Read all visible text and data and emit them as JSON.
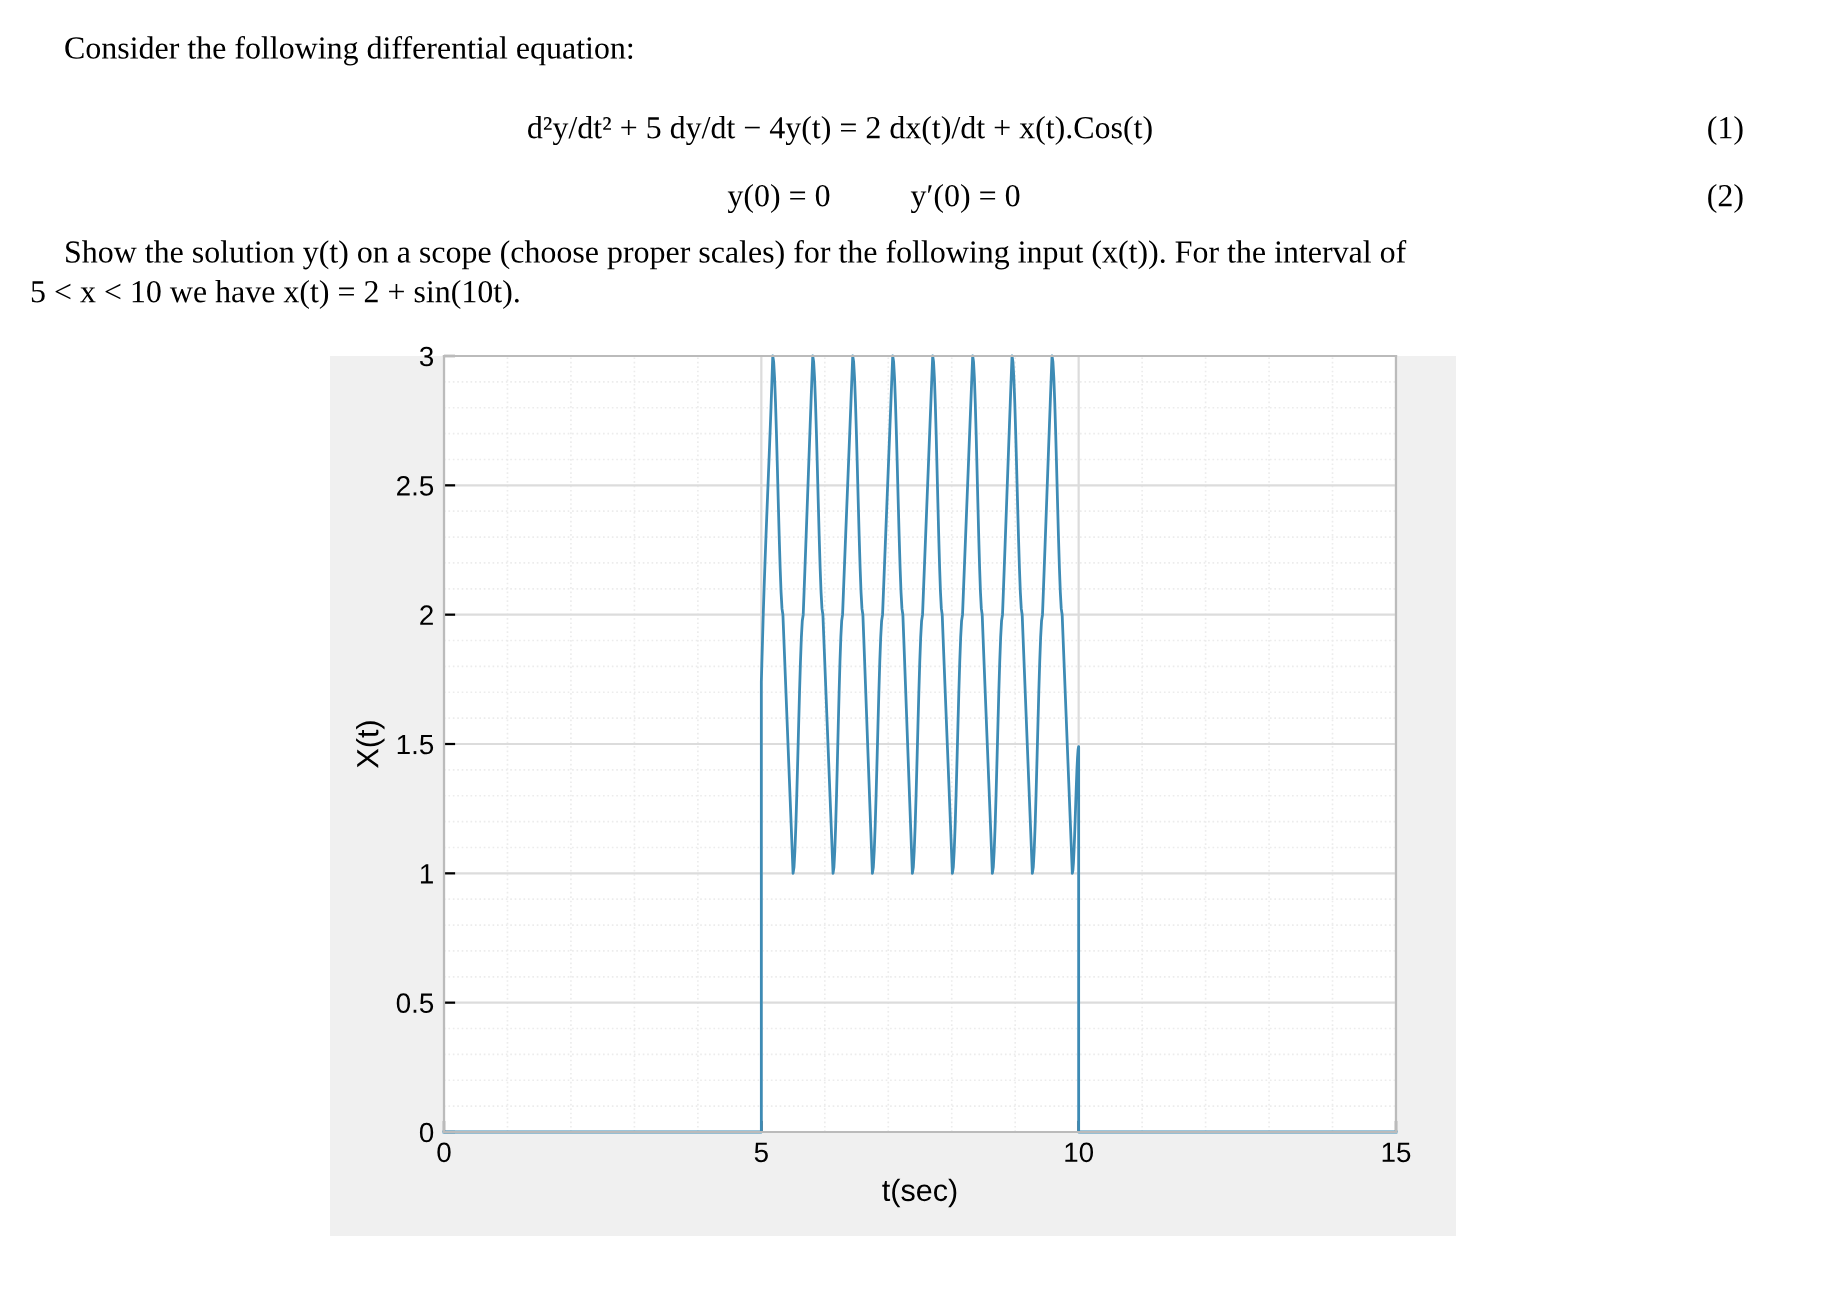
{
  "chart_data": {
    "type": "line",
    "annotations": [
      "Consider the following differential equation:",
      "d²y/dt² + 5 dy/dt − 4y(t) = 2 dx(t)/dt + x(t).Cos(t)",
      "(1)",
      "y(0) = 0          y′(0) = 0",
      "(2)",
      "Show the solution y(t) on a scope (choose proper scales) for the following input (x(t)). For the interval of",
      "5 < x < 10 we have x(t) = 2 + sin(10t)."
    ],
    "xlabel": "t(sec)",
    "ylabel": "X(t)",
    "series": [
      {
        "color": "#3d8bb5",
        "x": [
          0,
          5,
          5,
          5.03,
          5.18,
          5.34,
          5.5,
          5.66,
          5.81,
          5.97,
          6.13,
          6.28,
          6.44,
          6.6,
          6.75,
          6.91,
          7.07,
          7.23,
          7.38,
          7.54,
          7.7,
          7.85,
          8.01,
          8.17,
          8.33,
          8.48,
          8.64,
          8.8,
          8.95,
          9.11,
          9.27,
          9.43,
          9.58,
          9.74,
          9.9,
          10,
          10,
          15
        ],
        "values": [
          0,
          0,
          1.74,
          2,
          3,
          2,
          1,
          2,
          3,
          2,
          1,
          2,
          3,
          2,
          1,
          2,
          3,
          2,
          1,
          2,
          3,
          2,
          1,
          2,
          3,
          2,
          1,
          2,
          3,
          2,
          1,
          2,
          3,
          2,
          1,
          1.49,
          0,
          0
        ]
      }
    ],
    "xlim": [
      0,
      15
    ],
    "xticks": [
      0,
      5,
      10,
      15
    ],
    "ylim": [
      0,
      3
    ],
    "yticks": [
      0,
      0.5,
      1,
      1.5,
      2,
      2.5,
      3
    ],
    "grid": true,
    "marker": "none",
    "line_style": "solid"
  }
}
